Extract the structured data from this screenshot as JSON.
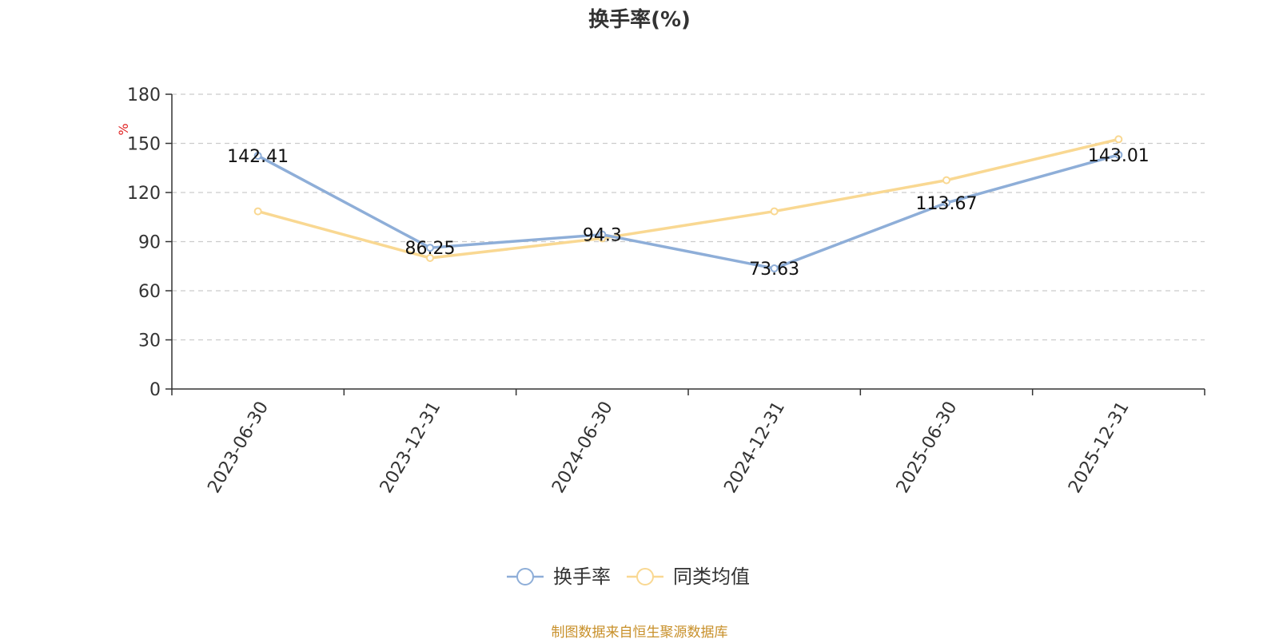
{
  "chart_data": {
    "type": "line",
    "title": "换手率(%)",
    "ylabel": "%",
    "categories": [
      "2023-06-30",
      "2023-12-31",
      "2024-06-30",
      "2024-12-31",
      "2025-06-30",
      "2025-12-31"
    ],
    "series": [
      {
        "name": "换手率",
        "values": [
          142.41,
          86.25,
          94.3,
          73.63,
          113.67,
          143.01
        ],
        "color": "#8eaed8",
        "labeled": true
      },
      {
        "name": "同类均值",
        "values": [
          108.5,
          80.0,
          92.0,
          108.5,
          127.5,
          152.5
        ],
        "color": "#f9d892",
        "labeled": false
      }
    ],
    "ylim": [
      0,
      180
    ],
    "yticks": [
      0,
      30,
      60,
      90,
      120,
      150,
      180
    ],
    "grid": true,
    "legend_position": "bottom-center"
  },
  "source_text": "制图数据来自恒生聚源数据库",
  "colors": {
    "axis": "#333333",
    "grid": "#cccccc",
    "source": "#c8902a",
    "unit": "#e02020"
  }
}
